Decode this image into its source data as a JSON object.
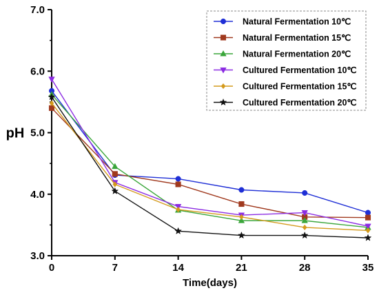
{
  "chart_data": {
    "type": "line",
    "xlabel": "Time(days)",
    "ylabel": "pH",
    "x": [
      0,
      7,
      14,
      21,
      28,
      35
    ],
    "xlim": [
      0,
      35
    ],
    "ylim": [
      3.0,
      7.0
    ],
    "xticks": [
      "0",
      "7",
      "14",
      "21",
      "28",
      "35"
    ],
    "yticks": [
      "3.0",
      "4.0",
      "5.0",
      "6.0",
      "7.0"
    ],
    "legend_position": "top-right",
    "grid": false,
    "series": [
      {
        "name": "Natural Fermentation 10℃",
        "color": "#1f2fd6",
        "marker": "circle",
        "values": [
          5.68,
          4.31,
          4.25,
          4.07,
          4.02,
          3.7
        ]
      },
      {
        "name": "Natural Fermentation 15℃",
        "color": "#a0391e",
        "marker": "square",
        "values": [
          5.4,
          4.33,
          4.16,
          3.84,
          3.63,
          3.62
        ]
      },
      {
        "name": "Natural Fermentation 20℃",
        "color": "#3aa63a",
        "marker": "triangle-up",
        "values": [
          5.62,
          4.45,
          3.74,
          3.57,
          3.57,
          3.46
        ]
      },
      {
        "name": "Cultured Fermentation 10℃",
        "color": "#8b2be2",
        "marker": "triangle-down",
        "values": [
          5.87,
          4.19,
          3.8,
          3.66,
          3.7,
          3.48
        ]
      },
      {
        "name": "Cultured Fermentation 15℃",
        "color": "#d49a1c",
        "marker": "diamond",
        "values": [
          5.48,
          4.16,
          3.75,
          3.63,
          3.46,
          3.41
        ]
      },
      {
        "name": "Cultured Fermentation 20℃",
        "color": "#111111",
        "marker": "star",
        "values": [
          5.58,
          4.05,
          3.4,
          3.33,
          3.33,
          3.29
        ]
      }
    ]
  }
}
